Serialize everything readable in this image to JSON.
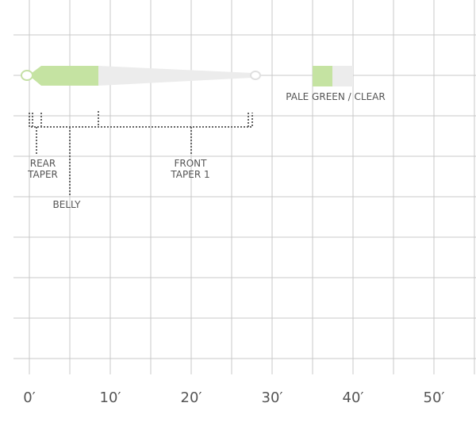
{
  "labels": {
    "rear_taper": [
      "REAR",
      "TAPER"
    ],
    "belly": "BELLY",
    "front_taper": [
      "FRONT",
      "TAPER 1"
    ],
    "color": "PALE GREEN / CLEAR"
  },
  "axis": {
    "ticks": [
      "0′",
      "10′",
      "20′",
      "30′",
      "40′",
      "50′"
    ]
  }
}
